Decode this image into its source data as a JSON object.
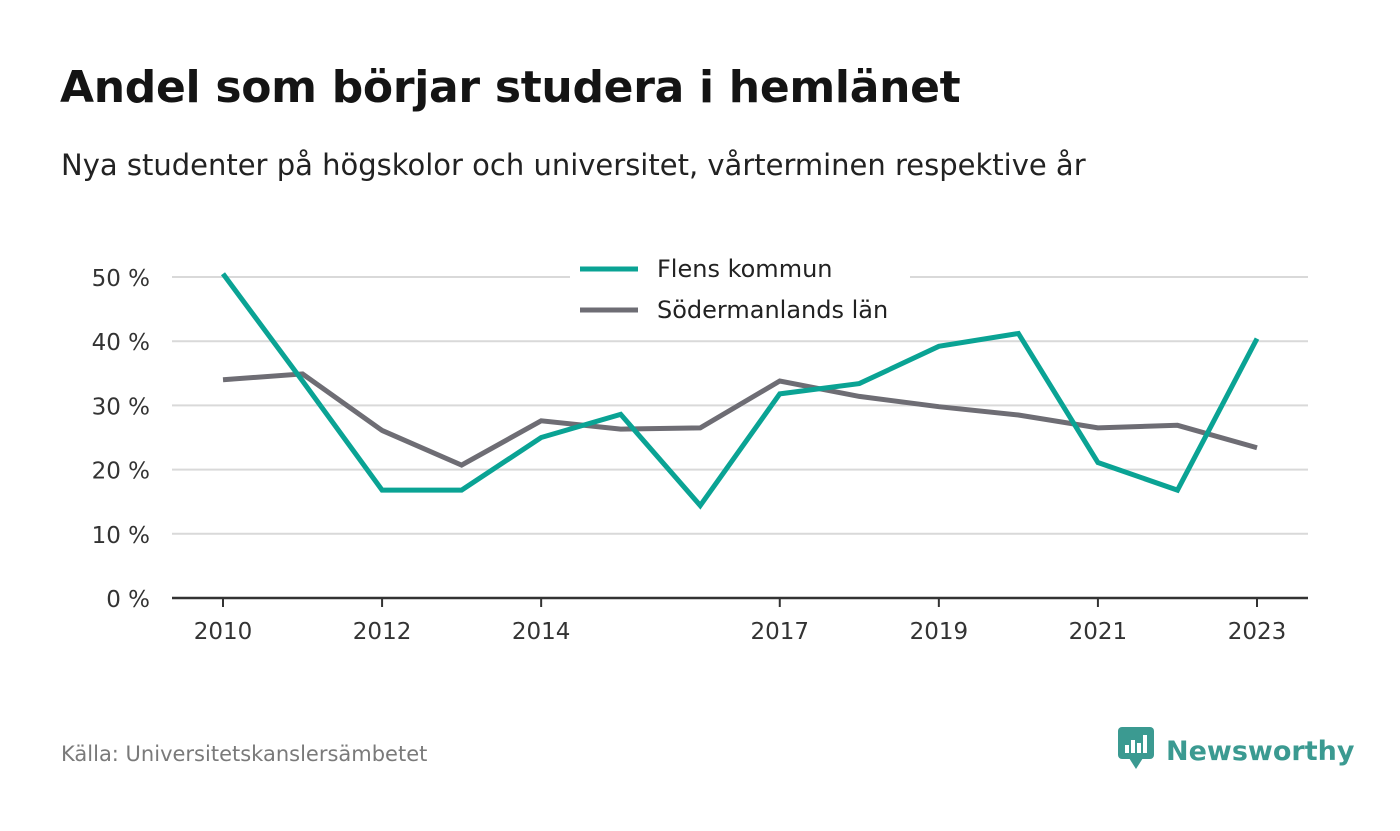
{
  "title": "Andel som börjar studera i hemlänet",
  "subtitle": "Nya studenter på högskolor och universitet, vårterminen respektive år",
  "source": "Källa: Universitetskanslersämbetet",
  "brand": {
    "name": "Newsworthy",
    "icon": "newsworthy-logo-icon",
    "color": "#3b9a91"
  },
  "chart_data": {
    "type": "line",
    "x": [
      2010,
      2011,
      2012,
      2013,
      2014,
      2015,
      2016,
      2017,
      2018,
      2019,
      2020,
      2021,
      2022,
      2023
    ],
    "x_tick_labels": [
      "2010",
      "2012",
      "2014",
      "2017",
      "2019",
      "2021",
      "2023"
    ],
    "y_ticks": [
      0,
      10,
      20,
      30,
      40,
      50
    ],
    "y_tick_labels": [
      "0 %",
      "10 %",
      "20 %",
      "30 %",
      "40 %",
      "50 %"
    ],
    "ylim": [
      0,
      50
    ],
    "xlabel": "",
    "ylabel": "",
    "grid": true,
    "legend_position": "top-center",
    "series": [
      {
        "name": "Flens kommun",
        "color": "#0aa394",
        "values": [
          50.5,
          33.8,
          16.8,
          16.8,
          25.0,
          28.6,
          14.4,
          31.8,
          33.4,
          39.2,
          41.2,
          21.1,
          16.8,
          40.4
        ]
      },
      {
        "name": "Södermanlands län",
        "color": "#6e6d74",
        "values": [
          34.0,
          34.9,
          26.1,
          20.7,
          27.6,
          26.3,
          26.5,
          33.8,
          31.4,
          29.8,
          28.5,
          26.5,
          26.9,
          23.4
        ]
      }
    ]
  }
}
